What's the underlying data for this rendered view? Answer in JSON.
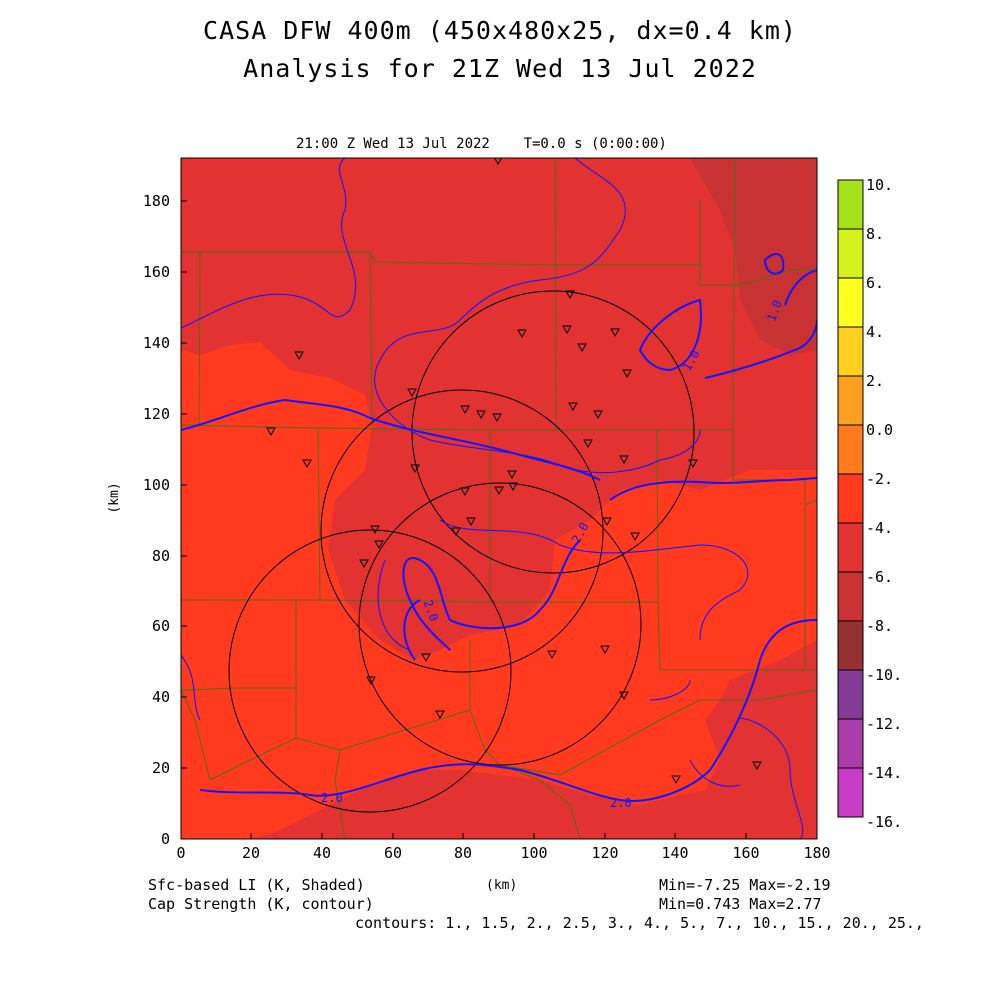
{
  "title": {
    "line1": "CASA DFW 400m (450x480x25, dx=0.4 km)",
    "line2": "Analysis for 21Z Wed 13 Jul 2022"
  },
  "plot_header": "21:00 Z Wed 13 Jul 2022    T=0.0 s (0:00:00)",
  "axes": {
    "x_label": "(km)",
    "y_label": "(km)",
    "x_ticks": [
      "0",
      "20",
      "40",
      "60",
      "80",
      "100",
      "120",
      "140",
      "160",
      "180"
    ],
    "y_ticks": [
      "0",
      "20",
      "40",
      "60",
      "80",
      "100",
      "120",
      "140",
      "160",
      "180"
    ]
  },
  "colorbar": {
    "labels": [
      "10.",
      "8.",
      "6.",
      "4.",
      "2.",
      "0.0",
      "-2.",
      "-4.",
      "-6.",
      "-8.",
      "-10.",
      "-12.",
      "-14.",
      "-16."
    ],
    "colors": [
      "#a6e21c",
      "#d4f21c",
      "#ffff20",
      "#ffd020",
      "#ffa020",
      "#ff7b1e",
      "#ff3a1e",
      "#e23232",
      "#c83232",
      "#963232",
      "#823c96",
      "#aa3caa",
      "#c83cc8",
      "#dc3cdc"
    ]
  },
  "field_colors": {
    "li_-2_to_-4": "#ff3a1e",
    "li_-4_to_-6": "#e23232",
    "li_-6_to_-8": "#c83232",
    "contour_main": "#1414ff",
    "county_lines": "#556b14",
    "radar_rings": "#000000"
  },
  "contour_labels": [
    "2.0",
    "2.0",
    "2.0",
    "2.0",
    "1.0",
    "1.0"
  ],
  "footer": {
    "left1": "Sfc-based LI (K, Shaded)",
    "left2": "Cap Strength (K, contour)",
    "center": "(km)",
    "right1": "Min=-7.25 Max=-2.19",
    "right2": "Min=0.743 Max=2.77",
    "contours": "contours: 1., 1.5, 2., 2.5, 3., 4., 5., 7., 10., 15., 20., 25.,"
  }
}
